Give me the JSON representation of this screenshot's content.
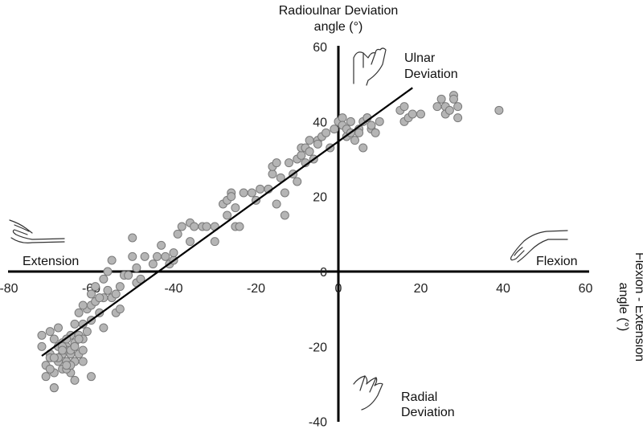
{
  "chart_data": {
    "type": "scatter",
    "title": "",
    "xlabel": "Flexion - Extension angle (°)",
    "ylabel": "Radioulnar Deviation angle (°)",
    "ylabel_lines": [
      "Radioulnar Deviation",
      "angle (°)"
    ],
    "xlabel_lines": [
      "Flexion - Extension",
      "angle (°)"
    ],
    "xlim": [
      -80,
      60
    ],
    "ylim": [
      -40,
      60
    ],
    "xticks": [
      "-80",
      "-60",
      "-40",
      "-20",
      "0",
      "20",
      "40",
      "60"
    ],
    "yticks": [
      "60",
      "40",
      "20",
      "0",
      "-20",
      "-40"
    ],
    "grid": false,
    "annotations": {
      "ulnar": [
        "Ulnar",
        "Deviation"
      ],
      "radial": [
        "Radial",
        "Deviation"
      ],
      "extension": "Extension",
      "flexion": "Flexion"
    },
    "marker_color": "#b5b5b5",
    "marker_edge": "#7a7a7a",
    "line_color": "#000000",
    "fit_line": {
      "x": [
        -72,
        18
      ],
      "y": [
        -22.5,
        49
      ]
    },
    "points": {
      "x": [
        -72,
        -71,
        -70,
        -70,
        -69,
        -69,
        -69,
        -68,
        -68,
        -68,
        -67,
        -67,
        -67,
        -66,
        -66,
        -66,
        -65,
        -65,
        -65,
        -64,
        -64,
        -64,
        -63,
        -63,
        -63,
        -62,
        -62,
        -61,
        -61,
        -60,
        -60,
        -60,
        -59,
        -59,
        -58,
        -57,
        -57,
        -56,
        -56,
        -55,
        -55,
        -54,
        -54,
        -53,
        -52,
        -51,
        -50,
        -50,
        -49,
        -49,
        -48,
        -47,
        -45,
        -44,
        -43,
        -42,
        -41,
        -40,
        -40,
        -39,
        -38,
        -36,
        -36,
        -35,
        -33,
        -32,
        -30,
        -30,
        -28,
        -27,
        -27,
        -26,
        -26,
        -25,
        -25,
        -24,
        -23,
        -21,
        -20,
        -19,
        -17,
        -16,
        -16,
        -15,
        -15,
        -14,
        -13,
        -13,
        -12,
        -11,
        -10,
        -10,
        -9,
        -9,
        -8,
        -8,
        -7,
        -7,
        -6,
        -5,
        -5,
        -4,
        -3,
        -2,
        -1,
        0,
        1,
        1,
        2,
        2,
        3,
        3,
        4,
        5,
        5,
        6,
        6,
        7,
        7,
        8,
        8,
        9,
        10,
        15,
        16,
        16,
        17,
        18,
        20,
        24,
        25,
        26,
        26,
        27,
        28,
        28,
        29,
        29,
        39,
        -72,
        -71,
        -70,
        -69,
        -68,
        -67,
        -66,
        -65,
        -64,
        -63,
        -62,
        -68,
        -66,
        -64,
        -62,
        -60,
        -70,
        -67,
        -65,
        -57,
        -53,
        -58,
        -62,
        -69,
        -66
      ],
      "y": [
        -20,
        -25,
        -22,
        -16,
        -18,
        -27,
        -31,
        -20,
        -15,
        -23,
        -22,
        -19,
        -26,
        -20,
        -24,
        -21,
        -17,
        -22,
        -27,
        -14,
        -19,
        -24,
        -11,
        -17,
        -22,
        -14,
        -18,
        -10,
        -16,
        -6,
        -9,
        -13,
        -4,
        -8,
        -11,
        -2,
        -7,
        0,
        -5,
        3,
        -7,
        -11,
        -6,
        -4,
        -1,
        -1,
        9,
        4,
        -3,
        1,
        -2,
        4,
        2,
        4,
        7,
        4,
        2,
        3,
        5,
        10,
        12,
        13,
        8,
        12,
        12,
        12,
        12,
        8,
        18,
        19,
        15,
        21,
        20,
        12,
        17,
        12,
        21,
        21,
        19,
        22,
        22,
        26,
        28,
        18,
        29,
        25,
        21,
        15,
        29,
        26,
        24,
        30,
        31,
        33,
        29,
        33,
        32,
        35,
        30,
        35,
        34,
        36,
        37,
        33,
        38,
        40,
        41,
        39,
        36,
        38,
        40,
        37,
        35,
        38,
        37,
        33,
        40,
        41,
        41,
        38,
        39,
        37,
        40,
        43,
        40,
        44,
        41,
        42,
        42,
        44,
        46,
        44,
        42,
        43,
        47,
        46,
        44,
        41,
        43,
        -17,
        -28,
        -26,
        -31,
        -24,
        -20,
        -26,
        -21,
        -29,
        -18,
        -21,
        -23,
        -18,
        -20,
        -24,
        -28,
        -23,
        -21,
        -25,
        -15,
        -10,
        -7,
        -9,
        -23,
        -25
      ]
    }
  }
}
